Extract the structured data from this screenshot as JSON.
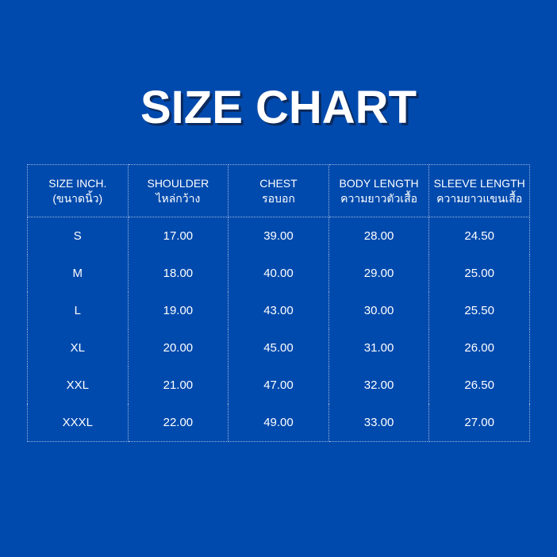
{
  "title": "SIZE CHART",
  "colors": {
    "background": "#014aad",
    "text": "#ffffff"
  },
  "headers": [
    {
      "en": "SIZE INCH.",
      "th": "(ขนาดนิ้ว)"
    },
    {
      "en": "SHOULDER",
      "th": "ไหล่กว้าง"
    },
    {
      "en": "CHEST",
      "th": "รอบอก"
    },
    {
      "en": "BODY LENGTH",
      "th": "ความยาวตัวเสื้อ"
    },
    {
      "en": "SLEEVE LENGTH",
      "th": "ความยาวแขนเสื้อ"
    }
  ],
  "rows": [
    [
      "S",
      "17.00",
      "39.00",
      "28.00",
      "24.50"
    ],
    [
      "M",
      "18.00",
      "40.00",
      "29.00",
      "25.00"
    ],
    [
      "L",
      "19.00",
      "43.00",
      "30.00",
      "25.50"
    ],
    [
      "XL",
      "20.00",
      "45.00",
      "31.00",
      "26.00"
    ],
    [
      "XXL",
      "21.00",
      "47.00",
      "32.00",
      "26.50"
    ],
    [
      "XXXL",
      "22.00",
      "49.00",
      "33.00",
      "27.00"
    ]
  ]
}
